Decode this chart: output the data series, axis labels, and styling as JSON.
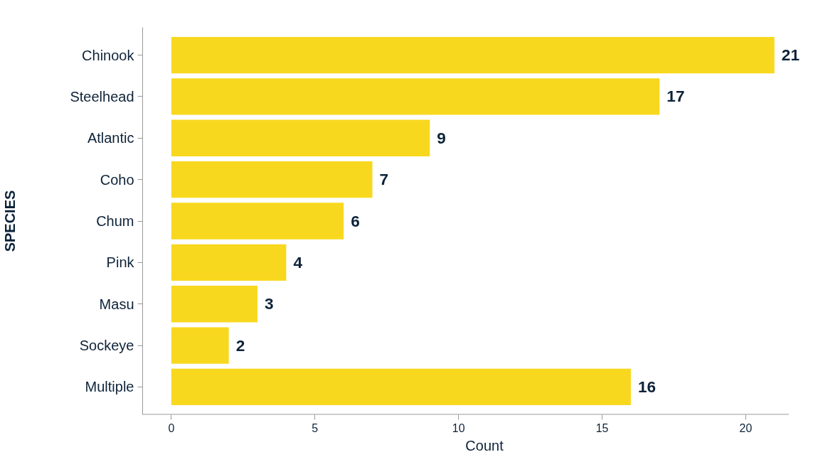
{
  "chart_data": {
    "type": "bar",
    "orientation": "horizontal",
    "xlabel": "Count",
    "ylabel": "SPECIES",
    "categories": [
      "Chinook",
      "Steelhead",
      "Atlantic",
      "Coho",
      "Chum",
      "Pink",
      "Masu",
      "Sockeye",
      "Multiple"
    ],
    "values": [
      21,
      17,
      9,
      7,
      6,
      4,
      3,
      2,
      16
    ],
    "color": "#f8d81f",
    "xlim": [
      -1,
      21.5
    ],
    "xticks": [
      0,
      5,
      10,
      15,
      20
    ],
    "grid": false,
    "data_labels": true
  }
}
